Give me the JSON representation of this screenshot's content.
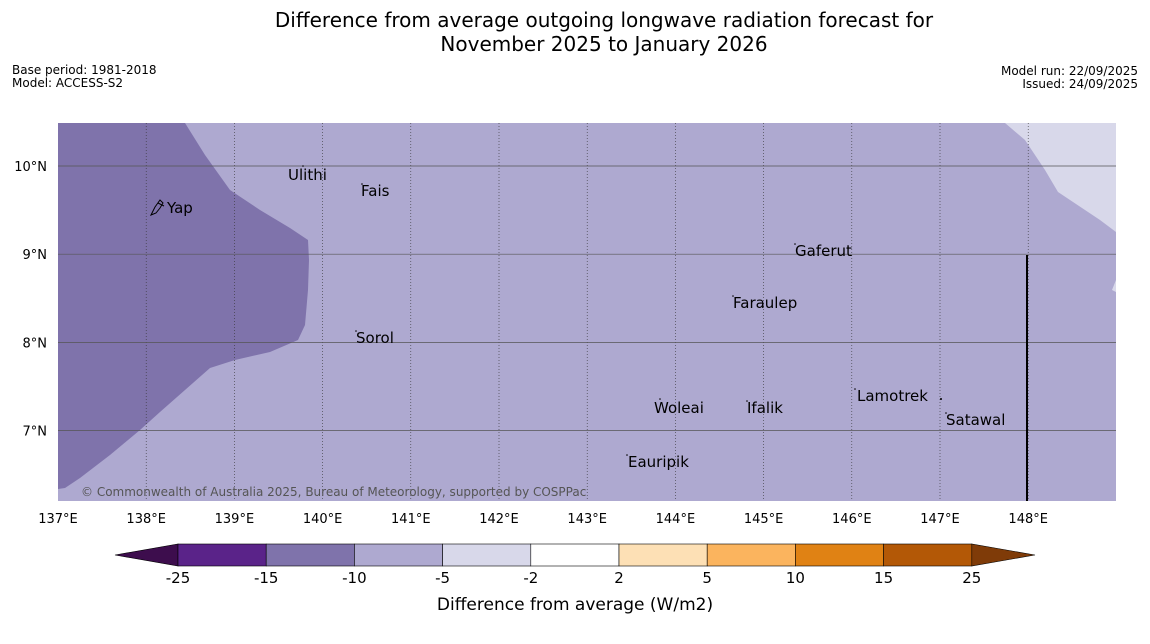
{
  "title": {
    "line1": "Difference from average outgoing longwave radiation forecast for",
    "line2": "November 2025 to January 2026"
  },
  "meta": {
    "base_period": "Base period: 1981-2018",
    "model": "Model: ACCESS-S2",
    "model_run": "Model run: 22/09/2025",
    "issued": "Issued: 24/09/2025"
  },
  "map": {
    "lon_ticks": [
      "137°E",
      "138°E",
      "139°E",
      "140°E",
      "141°E",
      "142°E",
      "143°E",
      "144°E",
      "145°E",
      "146°E",
      "147°E",
      "148°E"
    ],
    "lat_ticks": [
      "10°N",
      "9°N",
      "8°N",
      "7°N"
    ],
    "places": [
      {
        "name": "Ulithi"
      },
      {
        "name": "Fais"
      },
      {
        "name": "Yap"
      },
      {
        "name": "Gaferut"
      },
      {
        "name": "Faraulep"
      },
      {
        "name": "Sorol"
      },
      {
        "name": "Lamotrek"
      },
      {
        "name": "Woleai"
      },
      {
        "name": "Ifalik"
      },
      {
        "name": "Satawal"
      },
      {
        "name": "Eauripik"
      }
    ],
    "copyright": "© Commonwealth of Australia 2025, Bureau of Meteorology, supported by COSPPac",
    "region_colors": {
      "minus_15_to_minus_10": "#7f73ab",
      "minus_10_to_minus_5": "#aea9d0",
      "minus_5_to_minus_2": "#d8d8ea"
    }
  },
  "colorbar": {
    "label": "Difference from average (W/m2)",
    "ticks": [
      "-25",
      "-15",
      "-10",
      "-5",
      "-2",
      "2",
      "5",
      "10",
      "15",
      "25"
    ],
    "colors": [
      "#3d0d4d",
      "#5a2389",
      "#7f73ab",
      "#aea9d0",
      "#d8d8ea",
      "#ffffff",
      "#fde0b5",
      "#fbb45e",
      "#e08214",
      "#b35806",
      "#7f3b08"
    ]
  }
}
